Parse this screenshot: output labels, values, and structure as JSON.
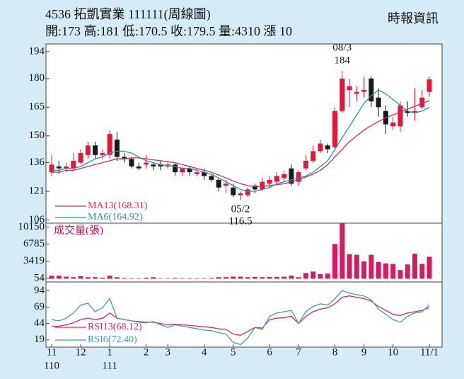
{
  "chart_data": [
    {
      "type": "candlestick",
      "title": "4536 拓凱實業 111111(周線圖)",
      "subtitle": "開:173 高:181 低:170.5 收:179.5 量:4310 漲 10",
      "source": "時報資訊",
      "up_color": "#e3173a",
      "down_color": "#1a1a1a",
      "open": [
        131,
        134,
        133,
        133,
        136,
        140,
        145,
        140,
        140,
        148,
        139,
        138,
        134,
        135,
        135,
        135,
        134,
        135,
        131,
        133,
        130,
        131,
        129,
        127,
        124,
        123,
        119,
        119,
        124,
        122,
        125,
        126,
        128,
        133,
        126,
        133,
        137,
        142,
        145,
        144,
        163,
        174,
        172,
        173,
        180,
        170,
        163,
        155,
        155,
        163,
        162,
        165,
        173
      ],
      "high": [
        140,
        137,
        136,
        141,
        143,
        147,
        147,
        143,
        153,
        152,
        141,
        139,
        136,
        140,
        136,
        137,
        136,
        136,
        134,
        134,
        133,
        133,
        130,
        128,
        127,
        125,
        121,
        123,
        125,
        128,
        129,
        131,
        132,
        135,
        132,
        140,
        145,
        148,
        146,
        165,
        184,
        180,
        176,
        181,
        181,
        175,
        166,
        160,
        168,
        168,
        175,
        174,
        181
      ],
      "low": [
        129,
        130,
        131,
        132,
        135,
        138,
        138,
        138,
        138,
        137,
        136,
        133,
        132,
        133,
        132,
        132,
        133,
        129,
        129,
        129,
        129,
        127,
        126,
        121,
        120,
        118,
        116.5,
        118,
        120,
        121,
        123,
        125,
        126,
        124,
        124,
        132,
        136,
        141,
        141,
        143,
        162,
        165,
        168,
        170,
        165,
        160,
        151,
        153,
        152,
        160,
        158,
        164,
        170.5
      ],
      "close": [
        135,
        133,
        134,
        137,
        141,
        145,
        140,
        141,
        151,
        139,
        138,
        134,
        133,
        136,
        134,
        134,
        135,
        131,
        133,
        131,
        131,
        129,
        127,
        123,
        125,
        119,
        120,
        122,
        122,
        126,
        127,
        129,
        130,
        125,
        131,
        137,
        142,
        146,
        143,
        163,
        180,
        176,
        173,
        174,
        168,
        165,
        156,
        157,
        166,
        162,
        163,
        170,
        179.5
      ],
      "series": [
        {
          "name": "MA13(168.31)",
          "color": "#d42a6a",
          "values": [
            131,
            131,
            132,
            132,
            133,
            134,
            135,
            136,
            137,
            138,
            138,
            138.5,
            138.5,
            138,
            137.5,
            137,
            136.5,
            136,
            135,
            134,
            133,
            132,
            131,
            129.5,
            128,
            126.5,
            125,
            124,
            123.5,
            123.5,
            124,
            124.5,
            125,
            126,
            127,
            128.5,
            130,
            132,
            135,
            139,
            143,
            147,
            150,
            153,
            155.5,
            157.5,
            159.5,
            161,
            162.5,
            164,
            165.5,
            167,
            168.31
          ]
        },
        {
          "name": "MA6(164.92)",
          "color": "#1d9a9e",
          "values": [
            132,
            132,
            133,
            133,
            134,
            136,
            138,
            139,
            141,
            142,
            142,
            141,
            139,
            137,
            136,
            135,
            134.5,
            134,
            133,
            133,
            132,
            131,
            130,
            128,
            126,
            124,
            122,
            121,
            121,
            122,
            123,
            125,
            126,
            127,
            128,
            129,
            131,
            134,
            137,
            143,
            149,
            155,
            161,
            167,
            171,
            174,
            172,
            169,
            166,
            163,
            162,
            163,
            164.92
          ]
        }
      ],
      "annotations": [
        {
          "label": "08/3",
          "value": 184
        },
        {
          "label": "05/2",
          "value": 116.5
        }
      ],
      "ylim": [
        106,
        194
      ],
      "yticks": [
        106,
        121,
        136,
        150,
        165,
        180,
        194
      ],
      "legend": "lower-left"
    },
    {
      "type": "bar",
      "title": "成交量(張)",
      "color": "#d81b60",
      "values": [
        600,
        600,
        400,
        300,
        500,
        300,
        300,
        200,
        600,
        300,
        150,
        100,
        100,
        200,
        300,
        100,
        100,
        150,
        100,
        100,
        100,
        100,
        150,
        300,
        300,
        400,
        400,
        300,
        350,
        300,
        350,
        350,
        400,
        600,
        300,
        1100,
        1400,
        900,
        1000,
        6800,
        10900,
        4800,
        4700,
        3400,
        4700,
        3300,
        3000,
        2900,
        1700,
        2800,
        4900,
        2900,
        4310
      ],
      "ylim": [
        0,
        10900
      ],
      "yticks": [
        54,
        3419,
        6785,
        10150
      ]
    },
    {
      "type": "line",
      "categories": [
        "11",
        null,
        null,
        null,
        "12",
        null,
        null,
        null,
        "1",
        null,
        null,
        null,
        null,
        "2",
        null,
        null,
        "3",
        null,
        null,
        null,
        null,
        "4",
        null,
        null,
        null,
        "5",
        null,
        null,
        null,
        null,
        "6",
        null,
        null,
        null,
        "7",
        null,
        null,
        null,
        null,
        "8",
        null,
        null,
        null,
        "9",
        null,
        null,
        null,
        "10",
        null,
        null,
        null,
        null,
        "11/1"
      ],
      "year_categories": [
        "110",
        null,
        null,
        null,
        null,
        null,
        null,
        null,
        "111",
        null,
        null,
        null,
        null,
        null,
        null,
        null,
        null,
        null,
        null,
        null,
        null,
        null,
        null,
        null,
        null,
        null,
        null,
        null,
        null,
        null,
        null,
        null,
        null,
        null,
        null,
        null,
        null,
        null,
        null,
        null,
        null,
        null,
        null,
        null,
        null,
        null,
        null,
        null,
        null,
        null,
        null,
        null,
        null
      ],
      "series": [
        {
          "name": "RSI13(68.12)",
          "color": "#d42a6a",
          "values": [
            40,
            40,
            42,
            45,
            50,
            52,
            50,
            52,
            60,
            52,
            50,
            48,
            47,
            46,
            46,
            44,
            42,
            43,
            42,
            41,
            40,
            39,
            38,
            36,
            35,
            28,
            26,
            32,
            38,
            37,
            50,
            52,
            53,
            55,
            44,
            55,
            62,
            66,
            68,
            74,
            84,
            86,
            84,
            82,
            78,
            70,
            64,
            58,
            56,
            60,
            62,
            64,
            68.12
          ]
        },
        {
          "name": "RSI6(72.40)",
          "color": "#3a9fb0",
          "values": [
            50,
            48,
            52,
            60,
            72,
            75,
            62,
            68,
            82,
            52,
            50,
            48,
            46,
            45,
            47,
            42,
            38,
            42,
            40,
            38,
            36,
            34,
            33,
            30,
            28,
            15,
            12,
            22,
            38,
            35,
            55,
            60,
            62,
            64,
            44,
            62,
            70,
            74,
            72,
            82,
            94,
            90,
            88,
            86,
            80,
            66,
            58,
            50,
            46,
            55,
            60,
            62,
            72.4
          ]
        }
      ],
      "ylim": [
        8,
        103
      ],
      "yticks": [
        19,
        44,
        69,
        94
      ],
      "legend": "lower-left"
    }
  ]
}
